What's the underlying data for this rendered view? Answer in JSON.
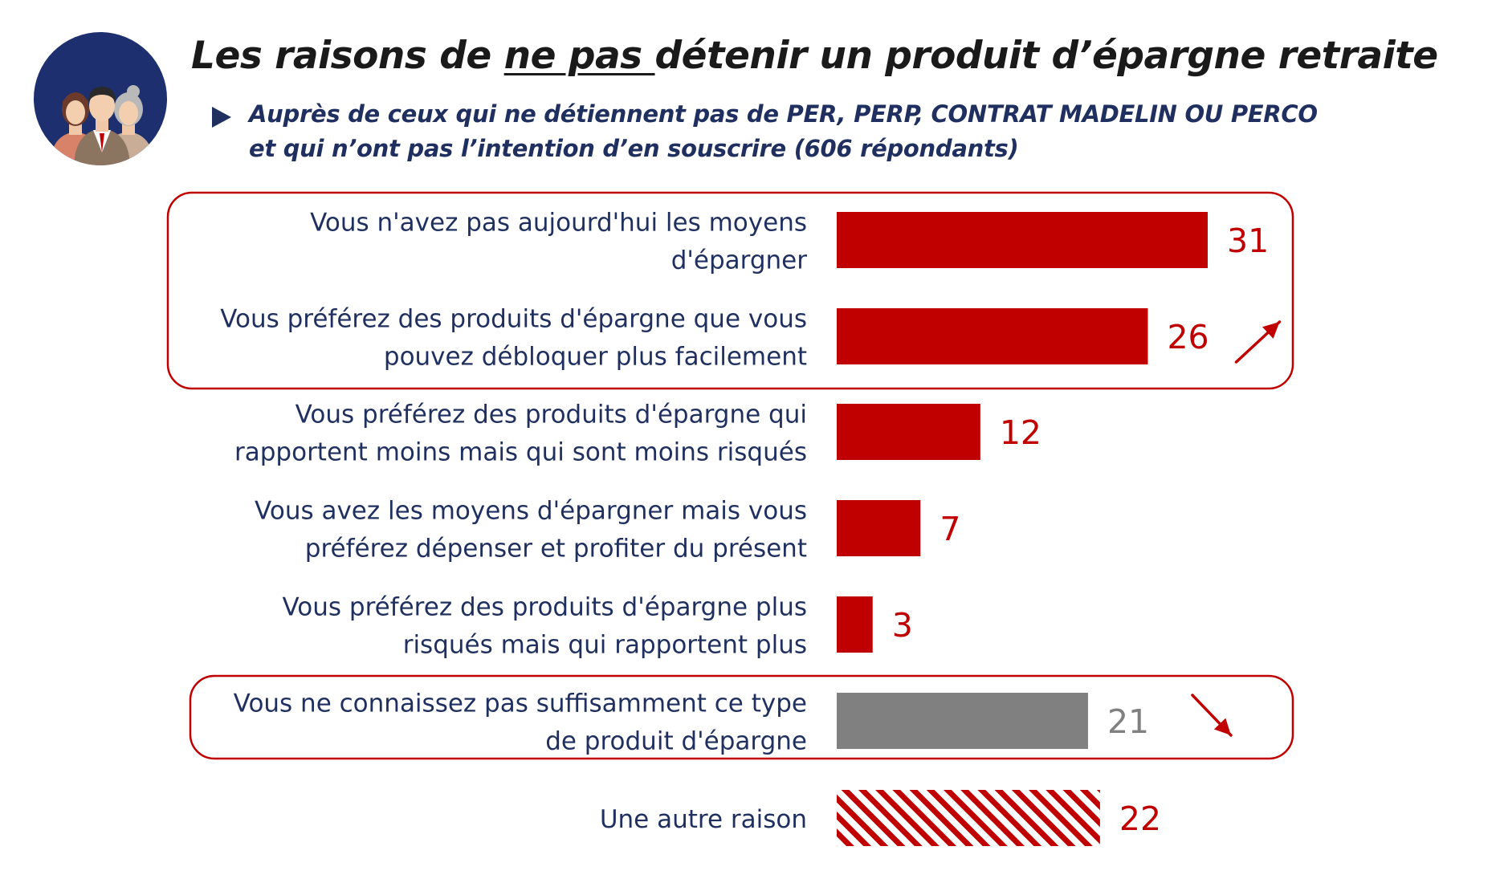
{
  "title": {
    "before": "Les raisons de ",
    "underlined": "ne pas ",
    "after": "détenir un produit d’épargne retraite"
  },
  "subtitle": {
    "line1": "Auprès de ceux qui ne détiennent pas de PER, PERP, CONTRAT MADELIN OU PERCO",
    "line2": "et qui n’ont pas l’intention d’en souscrire (606 répondants)"
  },
  "colors": {
    "accent_red": "#c00000",
    "grey_bar": "#808080",
    "label_text": "#1f2f5f",
    "avatar_bg": "#1d2f6f"
  },
  "chart_data": {
    "type": "bar",
    "orientation": "horizontal",
    "title": "",
    "xlabel": "",
    "ylabel": "",
    "xlim": [
      0,
      31
    ],
    "grid": false,
    "categories": [
      [
        "Vous n'avez pas aujourd'hui les moyens",
        "d'épargner"
      ],
      [
        "Vous préférez des produits d'épargne que vous",
        "pouvez débloquer plus facilement"
      ],
      [
        "Vous préférez des produits d'épargne qui",
        "rapportent moins mais qui sont moins risqués"
      ],
      [
        "Vous avez les moyens d'épargner mais vous",
        "préférez dépenser et profiter du présent"
      ],
      [
        "Vous préférez des produits d'épargne plus",
        "risqués mais qui rapportent plus"
      ],
      [
        "Vous ne connaissez pas suffisamment ce type",
        "de produit d'épargne"
      ],
      [
        "Une autre raison"
      ]
    ],
    "values": [
      31,
      26,
      12,
      7,
      3,
      21,
      22
    ],
    "value_labels": [
      "31",
      "26",
      "12",
      "7",
      "3",
      "21",
      "22"
    ],
    "bar_styles": [
      "red",
      "red",
      "red",
      "red",
      "red",
      "grey",
      "hatched-red"
    ],
    "trends": [
      null,
      "up",
      null,
      null,
      null,
      "down",
      null
    ],
    "highlight_groups": [
      [
        0,
        1
      ],
      [
        5
      ]
    ]
  }
}
